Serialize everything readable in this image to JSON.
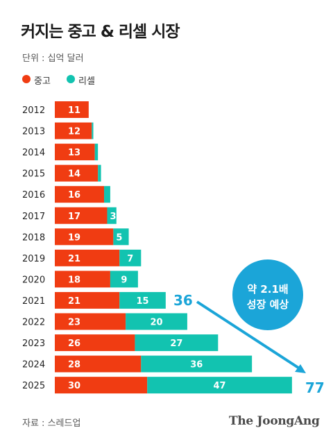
{
  "header": {
    "title": "커지는 중고 & 리셀 시장",
    "unit": "단위 : 십억 달러"
  },
  "legend": [
    {
      "label": "중고",
      "color": "#f03c12"
    },
    {
      "label": "리셀",
      "color": "#12c3b0"
    }
  ],
  "chart_data": {
    "type": "bar",
    "stacked": true,
    "orientation": "horizontal",
    "categories": [
      "2012",
      "2013",
      "2014",
      "2015",
      "2016",
      "2017",
      "2018",
      "2019",
      "2020",
      "2021",
      "2022",
      "2023",
      "2024",
      "2025"
    ],
    "series": [
      {
        "name": "중고",
        "color": "#f03c12",
        "values": [
          11,
          12,
          13,
          14,
          16,
          17,
          19,
          21,
          18,
          21,
          23,
          26,
          28,
          30
        ]
      },
      {
        "name": "리셀",
        "color": "#12c3b0",
        "values": [
          0,
          0.5,
          1,
          1,
          2,
          3,
          5,
          7,
          9,
          15,
          20,
          27,
          36,
          47
        ]
      }
    ],
    "value_labels": {
      "중고": [
        "11",
        "12",
        "13",
        "14",
        "16",
        "17",
        "19",
        "21",
        "18",
        "21",
        "23",
        "26",
        "28",
        "30"
      ],
      "리셀": [
        "",
        "",
        "",
        "",
        "",
        "3",
        "5",
        "7",
        "9",
        "15",
        "20",
        "27",
        "36",
        "47"
      ]
    },
    "annotation": {
      "start_value": "36",
      "end_value": "77",
      "callout": [
        "약 2.1배",
        "성장 예상"
      ],
      "color": "#1ba5d8"
    }
  },
  "footer": {
    "source": "자료 : 스레드업",
    "brand": "The JoongAng"
  }
}
